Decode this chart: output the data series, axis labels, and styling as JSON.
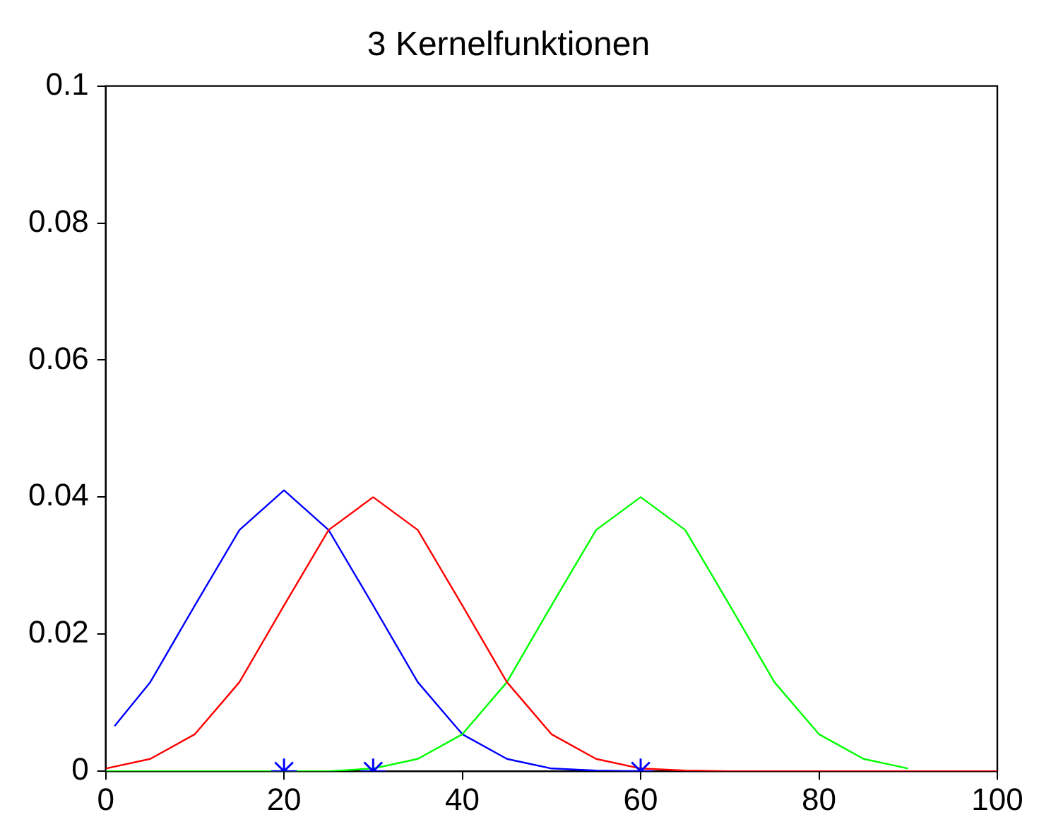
{
  "chart_data": {
    "type": "line",
    "title": "3 Kernelfunktionen",
    "xlim": [
      0,
      100
    ],
    "xticks": [
      0,
      20,
      40,
      60,
      80,
      100
    ],
    "ylim": [
      0,
      0.1
    ],
    "yticks": [
      0,
      0.02,
      0.04,
      0.06,
      0.08,
      0.1
    ],
    "marker": "none",
    "line_style": "solid",
    "series": [
      {
        "color": "#0000ff",
        "x": [
          1,
          5,
          10,
          15,
          20,
          25,
          30,
          35,
          40,
          45,
          50,
          55,
          60
        ],
        "values": [
          0.0066,
          0.013,
          0.0242,
          0.0352,
          0.041,
          0.0352,
          0.0242,
          0.013,
          0.0054,
          0.0018,
          0.0004,
          0.0001,
          0
        ]
      },
      {
        "color": "#ff0000",
        "x": [
          0,
          5,
          10,
          15,
          20,
          25,
          30,
          35,
          40,
          45,
          50,
          55,
          60,
          65,
          70,
          75,
          80,
          85,
          90,
          95,
          100
        ],
        "values": [
          0.0004,
          0.0018,
          0.0054,
          0.013,
          0.0242,
          0.0352,
          0.04,
          0.0352,
          0.0242,
          0.013,
          0.0054,
          0.0018,
          0.0004,
          0.0001,
          0,
          0,
          0,
          0,
          0,
          0,
          0
        ]
      },
      {
        "color": "#00ff00",
        "x": [
          0,
          5,
          10,
          15,
          20,
          25,
          30,
          35,
          40,
          45,
          50,
          55,
          60,
          65,
          70,
          75,
          80,
          85,
          90
        ],
        "values": [
          0,
          0,
          0,
          0,
          0,
          0,
          0.0004,
          0.0018,
          0.0054,
          0.013,
          0.0242,
          0.0352,
          0.04,
          0.0352,
          0.0242,
          0.013,
          0.0054,
          0.0018,
          0.0004
        ]
      },
      {
        "type": "scatter",
        "marker": "cross",
        "color": "#0000ff",
        "x": [
          20,
          30,
          60
        ],
        "values": [
          0,
          0,
          0
        ]
      }
    ]
  }
}
